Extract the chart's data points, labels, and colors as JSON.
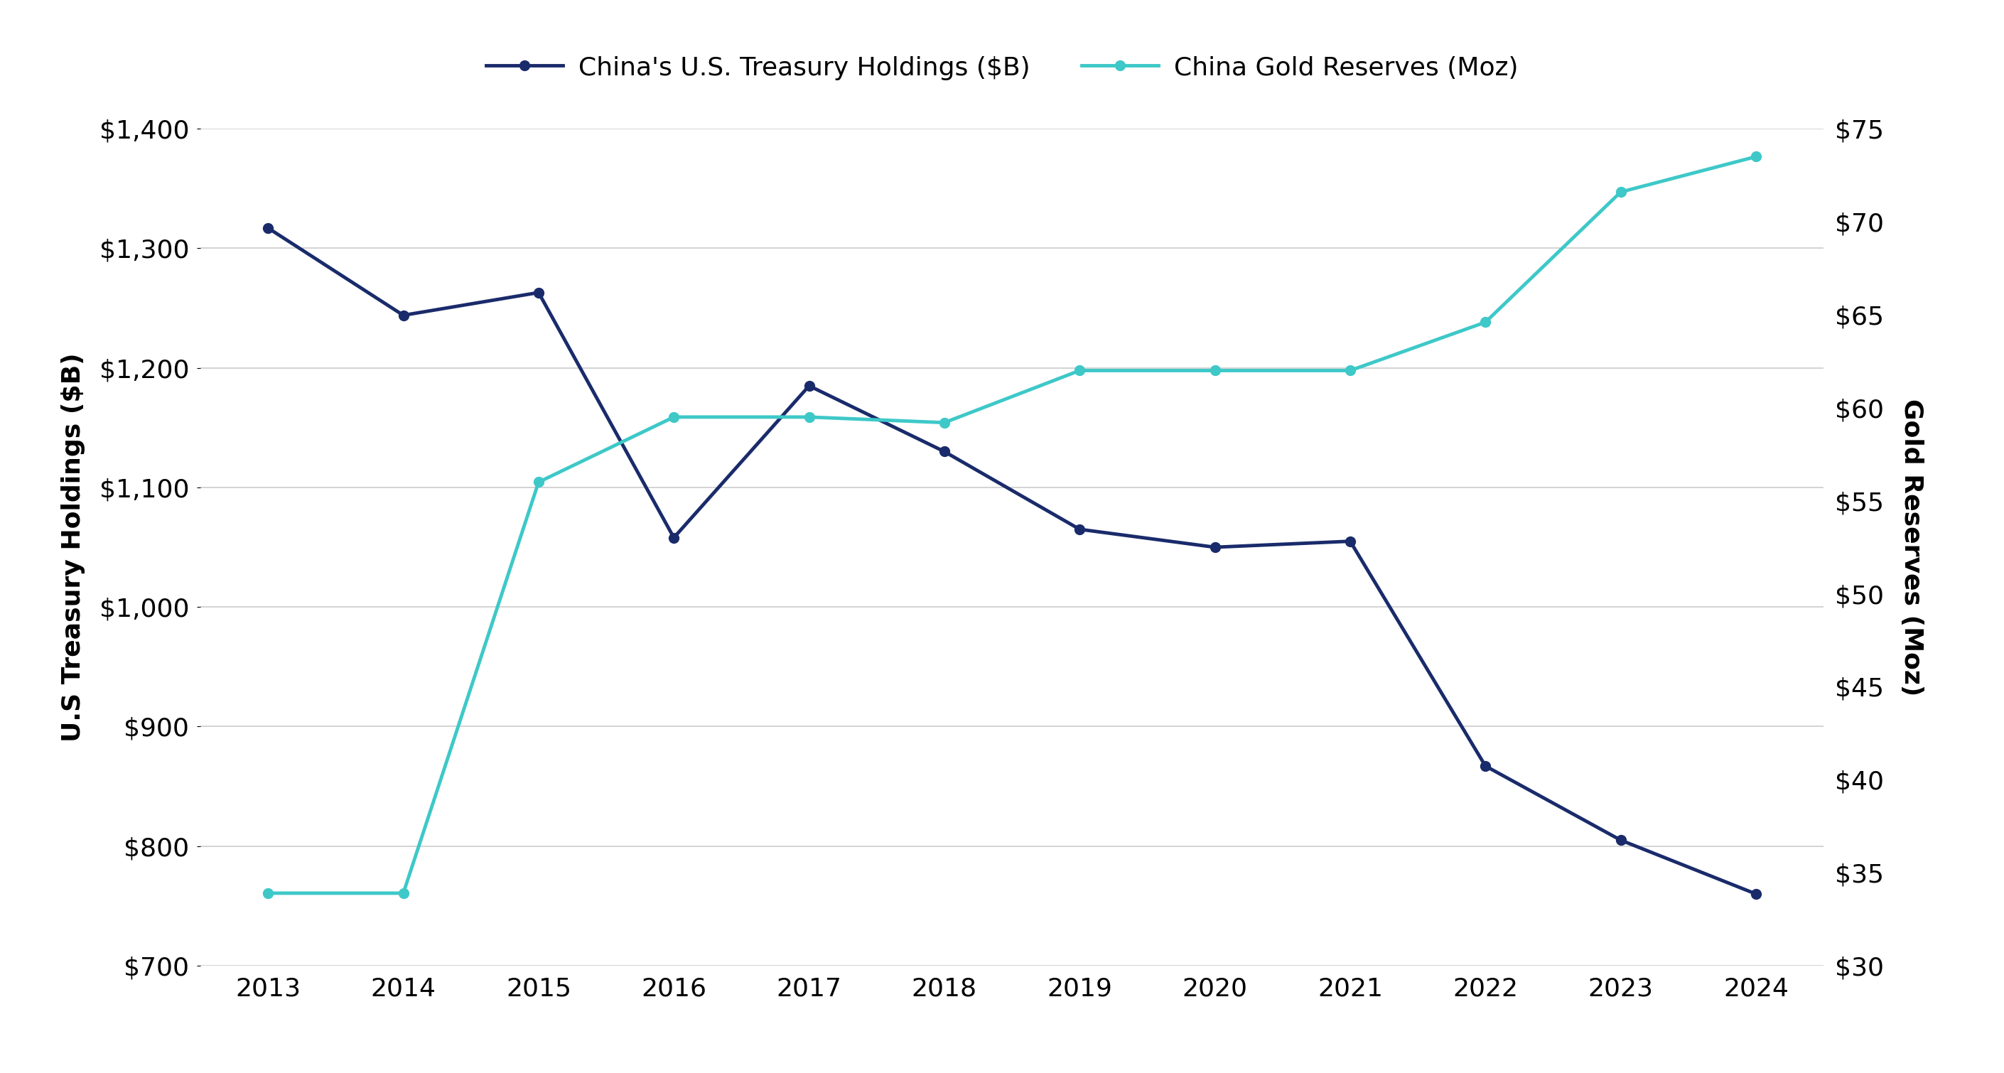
{
  "years": [
    2013,
    2014,
    2015,
    2016,
    2017,
    2018,
    2019,
    2020,
    2021,
    2022,
    2023,
    2024
  ],
  "treasury_holdings": [
    1317,
    1244,
    1263,
    1058,
    1185,
    1130,
    1065,
    1050,
    1055,
    867,
    805,
    760
  ],
  "gold_reserves": [
    33.9,
    33.9,
    56.0,
    59.5,
    59.5,
    59.2,
    62.0,
    62.0,
    62.0,
    64.6,
    71.6,
    73.5
  ],
  "treasury_color": "#1a2b6b",
  "gold_color": "#3ec8c8",
  "treasury_label": "China's U.S. Treasury Holdings ($B)",
  "gold_label": "China Gold Reserves (Moz)",
  "ylabel_left": "U.S Treasury Holdings ($B)",
  "ylabel_right": "Gold Reserves (Moz)",
  "ylim_left": [
    700,
    1400
  ],
  "ylim_right": [
    30,
    75
  ],
  "yticks_left": [
    700,
    800,
    900,
    1000,
    1100,
    1200,
    1300,
    1400
  ],
  "yticks_right": [
    30,
    35,
    40,
    45,
    50,
    55,
    60,
    65,
    70,
    75
  ],
  "background_color": "#ffffff",
  "grid_color": "#cccccc",
  "label_fontsize": 26,
  "tick_fontsize": 26,
  "legend_fontsize": 26,
  "line_width": 3.5,
  "marker_size": 10
}
